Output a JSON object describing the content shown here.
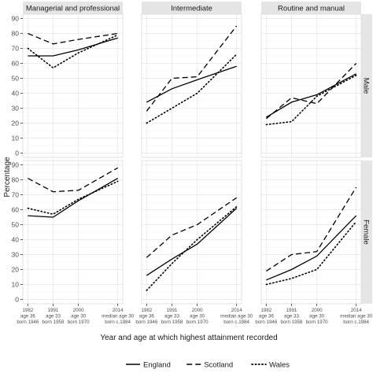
{
  "chart_data": {
    "type": "line",
    "xlabel": "Year and age at which highest attainment recorded",
    "ylabel": "Percentage",
    "ylim": [
      0,
      90
    ],
    "yticks": [
      0,
      10,
      20,
      30,
      40,
      50,
      60,
      70,
      80,
      90
    ],
    "x": [
      1982,
      1991,
      2000,
      2014
    ],
    "x_tick_labels": [
      [
        "1982",
        "age 36",
        "born 1946"
      ],
      [
        "1991",
        "age 33",
        "born 1958"
      ],
      [
        "2000",
        "age 30",
        "born 1970"
      ],
      [
        "2014",
        "median age 30",
        "born c.1984"
      ]
    ],
    "columns": [
      "Managerial and professional",
      "Intermediate",
      "Routine and manual"
    ],
    "rows": [
      "Male",
      "Female"
    ],
    "legend": {
      "placement": "bottom",
      "entries": [
        {
          "name": "England",
          "linestyle": "solid"
        },
        {
          "name": "Scotland",
          "linestyle": "dashed"
        },
        {
          "name": "Wales",
          "linestyle": "dotted"
        }
      ]
    },
    "panels": [
      {
        "column": "Managerial and professional",
        "row": "Male",
        "series": [
          {
            "name": "England",
            "values": [
              65,
              65,
              69,
              77
            ]
          },
          {
            "name": "Scotland",
            "values": [
              80,
              73,
              76,
              80
            ]
          },
          {
            "name": "Wales",
            "values": [
              70,
              57,
              67,
              79
            ]
          }
        ]
      },
      {
        "column": "Intermediate",
        "row": "Male",
        "series": [
          {
            "name": "England",
            "values": [
              34,
              43,
              49,
              58
            ]
          },
          {
            "name": "Scotland",
            "values": [
              28,
              50,
              51,
              85
            ]
          },
          {
            "name": "Wales",
            "values": [
              20,
              30,
              40,
              66
            ]
          }
        ]
      },
      {
        "column": "Routine and manual",
        "row": "Male",
        "series": [
          {
            "name": "England",
            "values": [
              24,
              34,
              39,
              53
            ]
          },
          {
            "name": "Scotland",
            "values": [
              23,
              37,
              33,
              60
            ]
          },
          {
            "name": "Wales",
            "values": [
              19,
              21,
              38,
              52
            ]
          }
        ]
      },
      {
        "column": "Managerial and professional",
        "row": "Female",
        "series": [
          {
            "name": "England",
            "values": [
              56,
              55,
              66,
              81
            ]
          },
          {
            "name": "Scotland",
            "values": [
              81,
              72,
              73,
              88
            ]
          },
          {
            "name": "Wales",
            "values": [
              61,
              57,
              67,
              79
            ]
          }
        ]
      },
      {
        "column": "Intermediate",
        "row": "Female",
        "series": [
          {
            "name": "England",
            "values": [
              16,
              27,
              37,
              61
            ]
          },
          {
            "name": "Scotland",
            "values": [
              28,
              43,
              50,
              68
            ]
          },
          {
            "name": "Wales",
            "values": [
              6,
              24,
              40,
              62
            ]
          }
        ]
      },
      {
        "column": "Routine and manual",
        "row": "Female",
        "series": [
          {
            "name": "England",
            "values": [
              13,
              20,
              29,
              56
            ]
          },
          {
            "name": "Scotland",
            "values": [
              19,
              30,
              32,
              75
            ]
          },
          {
            "name": "Wales",
            "values": [
              10,
              14,
              20,
              52
            ]
          }
        ]
      }
    ],
    "grid": true,
    "theme": {
      "panel_background": "#ffffff",
      "strip_background": "#e5e5e5",
      "gridline_color": "#ebebeb",
      "line_color": "#000000",
      "panel_border": "#d9d9d9"
    }
  }
}
